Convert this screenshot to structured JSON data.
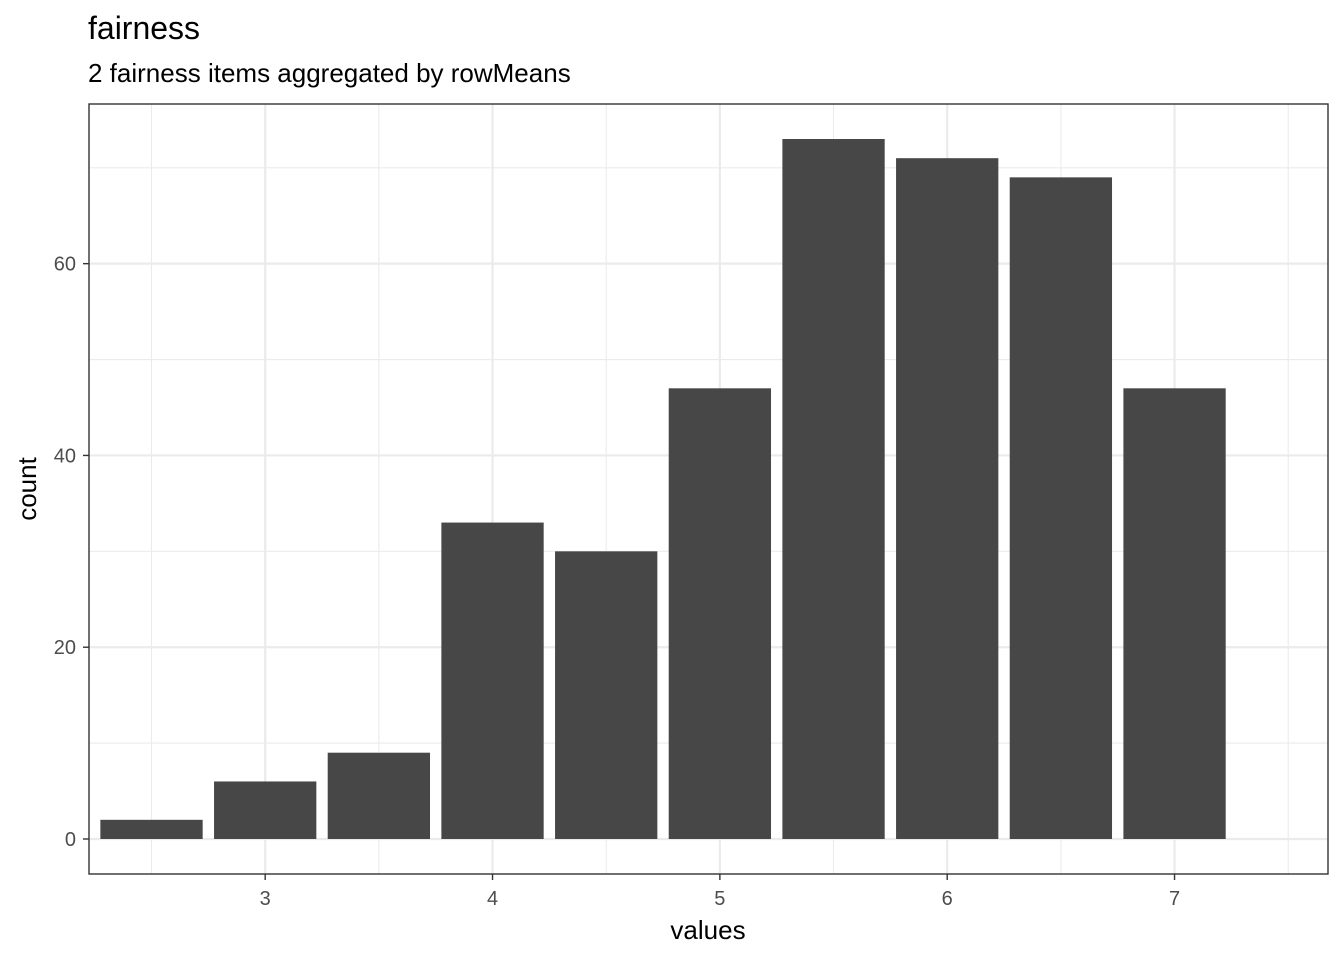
{
  "chart_data": {
    "type": "bar",
    "title": "fairness",
    "subtitle": "2 fairness items aggregated by rowMeans",
    "xlabel": "values",
    "ylabel": "count",
    "x": [
      2.5,
      3,
      3.5,
      4,
      4.5,
      5,
      5.5,
      6,
      6.5,
      7
    ],
    "values": [
      2,
      6,
      9,
      33,
      30,
      47,
      73,
      71,
      69,
      47
    ],
    "bar_width": 0.45,
    "xlim": [
      2.225,
      7.675
    ],
    "ylim": [
      -3.65,
      76.65
    ],
    "x_ticks": [
      3,
      4,
      5,
      6,
      7
    ],
    "x_minor_ticks": [
      2.5,
      3.5,
      4.5,
      5.5,
      6.5,
      7.5
    ],
    "y_ticks": [
      0,
      20,
      40,
      60
    ],
    "y_minor_ticks": [
      10,
      30,
      50,
      70
    ],
    "grid": true,
    "bar_color": "#474747",
    "theme": "bw"
  }
}
